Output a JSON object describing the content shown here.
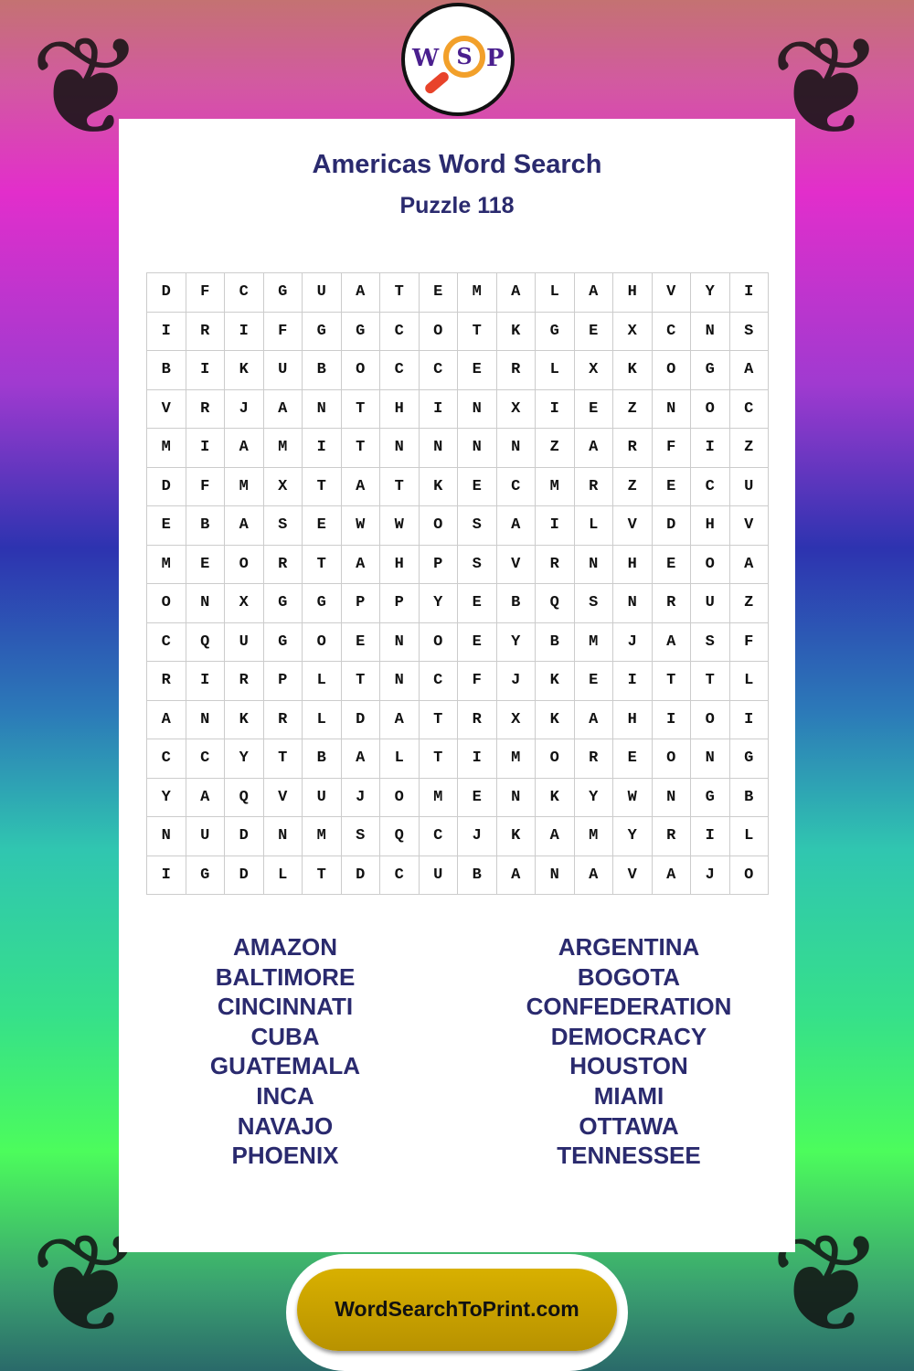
{
  "logo": {
    "letters": [
      "W",
      "S",
      "P"
    ]
  },
  "title": "Americas Word Search",
  "subtitle": "Puzzle 118",
  "grid": [
    "DFCGUATEMALAHVYI",
    "IRIFGGCOTKGEXCNS",
    "BIKUBOCCERLXKOGA",
    "VRJANTHINXIEZNOC",
    "MIAMITNNNNZARFIZ",
    "DFMXTATKECMRZECU",
    "EBASEWWOSAILVDHV",
    "MEORTAHPSVRNHEOA",
    "ONXGGPPYEBQSNRUZ",
    "CQUGOENOEYBMJASF",
    "RIRPLTNCFJKEITTL",
    "ANKRLDATRXKAHIOI",
    "CCYTBALTIMOREONG",
    "YAQVUJOMENKYWNGB",
    "NUDNMSQCJKAMYRIL",
    "IGDLTDCUBANAVAJO"
  ],
  "words_left": [
    "AMAZON",
    "BALTIMORE",
    "CINCINNATI",
    "CUBA",
    "GUATEMALA",
    "INCA",
    "NAVAJO",
    "PHOENIX"
  ],
  "words_right": [
    "ARGENTINA",
    "BOGOTA",
    "CONFEDERATION",
    "DEMOCRACY",
    "HOUSTON",
    "MIAMI",
    "OTTAWA",
    "TENNESSEE"
  ],
  "footer": "WordSearchToPrint.com"
}
